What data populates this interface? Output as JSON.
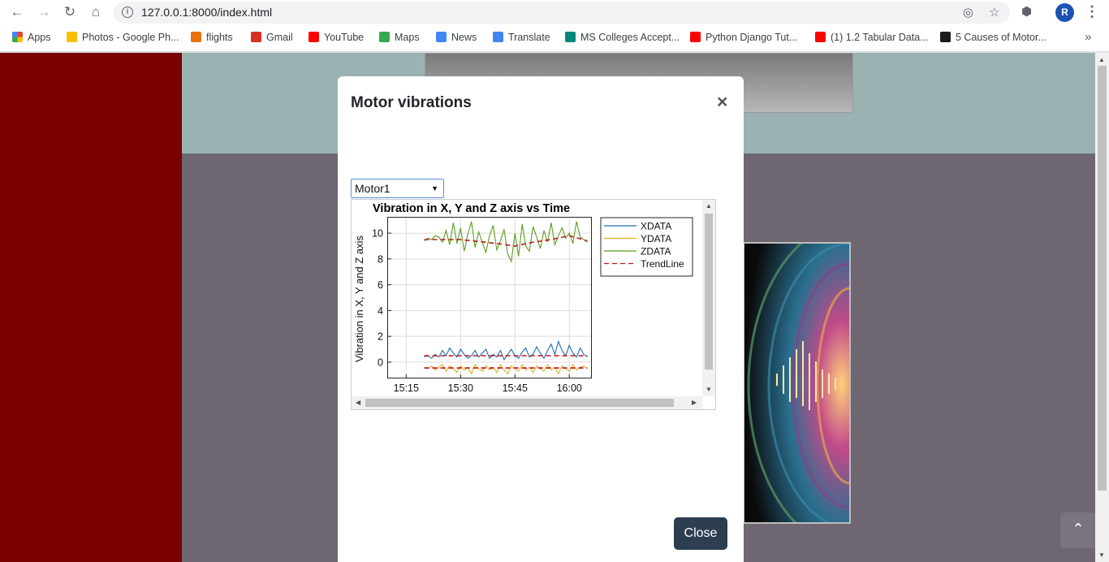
{
  "browser": {
    "url": "127.0.0.1:8000/index.html",
    "avatar_letter": "R"
  },
  "bookmarks": [
    {
      "label": "Apps",
      "color": "#ea4335"
    },
    {
      "label": "Photos - Google Ph...",
      "color": "#fbbc04"
    },
    {
      "label": "flights",
      "color": "#e8710a"
    },
    {
      "label": "Gmail",
      "color": "#d93025"
    },
    {
      "label": "YouTube",
      "color": "#ff0000"
    },
    {
      "label": "Maps",
      "color": "#34a853"
    },
    {
      "label": "News",
      "color": "#4285f4"
    },
    {
      "label": "Translate",
      "color": "#4285f4"
    },
    {
      "label": "MS Colleges Accept...",
      "color": "#00897b"
    },
    {
      "label": "Python Django Tut...",
      "color": "#ff0000"
    },
    {
      "label": "(1) 1.2 Tabular Data...",
      "color": "#ff0000"
    },
    {
      "label": "5 Causes of Motor...",
      "color": "#1a1a1a"
    }
  ],
  "modal": {
    "title": "Motor vibrations",
    "close_symbol": "×",
    "select_value": "Motor1",
    "close_button_label": "Close"
  },
  "chart_data": {
    "type": "line",
    "title": "Vibration in X, Y and Z axis vs Time",
    "xlabel": "",
    "ylabel": "Vibration in X, Y and Z axis",
    "x_ticks": [
      "15:15",
      "15:30",
      "15:45",
      "16:00"
    ],
    "y_ticks": [
      0,
      2,
      4,
      6,
      8,
      10
    ],
    "ylim": [
      -1.2,
      11.2
    ],
    "xlim_minutes": [
      10,
      66
    ],
    "grid": true,
    "legend_position": "top-right (outside plot)",
    "series": [
      {
        "name": "XDATA",
        "color": "#1f6fb4",
        "dash": false,
        "x": [
          20,
          21,
          22,
          23,
          24,
          25,
          26,
          27,
          28,
          29,
          30,
          31,
          32,
          33,
          34,
          35,
          36,
          37,
          38,
          39,
          40,
          41,
          42,
          43,
          44,
          45,
          46,
          47,
          48,
          49,
          50,
          51,
          52,
          53,
          54,
          55,
          56,
          57,
          58,
          59,
          60,
          61,
          62,
          63,
          64,
          65
        ],
        "y": [
          0.4,
          0.5,
          0.3,
          0.6,
          0.4,
          0.9,
          0.5,
          1.1,
          0.7,
          0.4,
          1.0,
          0.6,
          0.3,
          0.5,
          0.9,
          0.4,
          0.7,
          1.0,
          0.3,
          0.6,
          0.4,
          0.9,
          0.2,
          0.6,
          1.0,
          0.5,
          0.3,
          0.8,
          1.1,
          0.4,
          0.6,
          1.2,
          0.7,
          0.3,
          0.9,
          1.4,
          0.6,
          1.6,
          0.9,
          0.5,
          1.3,
          0.7,
          0.4,
          1.1,
          0.6,
          0.4
        ]
      },
      {
        "name": "YDATA",
        "color": "#e0b020",
        "dash": false,
        "x": [
          20,
          21,
          22,
          23,
          24,
          25,
          26,
          27,
          28,
          29,
          30,
          31,
          32,
          33,
          34,
          35,
          36,
          37,
          38,
          39,
          40,
          41,
          42,
          43,
          44,
          45,
          46,
          47,
          48,
          49,
          50,
          51,
          52,
          53,
          54,
          55,
          56,
          57,
          58,
          59,
          60,
          61,
          62,
          63,
          64,
          65
        ],
        "y": [
          -0.4,
          -0.5,
          -0.3,
          -0.6,
          -0.4,
          -0.2,
          -0.7,
          -0.3,
          -0.5,
          -0.8,
          -0.3,
          -0.6,
          -0.4,
          -0.9,
          -0.2,
          -0.5,
          -0.7,
          -0.3,
          -0.6,
          -0.4,
          -0.8,
          -0.2,
          -0.6,
          -0.9,
          -0.3,
          -0.5,
          -0.7,
          -0.2,
          -0.6,
          -0.4,
          -0.8,
          -0.3,
          -0.5,
          -0.7,
          -0.2,
          -0.6,
          -0.4,
          -0.9,
          -0.3,
          -0.5,
          -0.7,
          -0.2,
          -0.6,
          -0.4,
          -0.3,
          -0.5
        ]
      },
      {
        "name": "ZDATA",
        "color": "#5a9e1e",
        "dash": false,
        "x": [
          20,
          21,
          22,
          23,
          24,
          25,
          26,
          27,
          28,
          29,
          30,
          31,
          32,
          33,
          34,
          35,
          36,
          37,
          38,
          39,
          40,
          41,
          42,
          43,
          44,
          45,
          46,
          47,
          48,
          49,
          50,
          51,
          52,
          53,
          54,
          55,
          56,
          57,
          58,
          59,
          60,
          61,
          62,
          63,
          64,
          65
        ],
        "y": [
          9.4,
          9.6,
          9.5,
          9.8,
          9.7,
          9.3,
          10.2,
          9.1,
          10.8,
          9.2,
          10.4,
          8.6,
          9.9,
          10.9,
          8.9,
          10.1,
          9.3,
          8.5,
          9.8,
          10.6,
          8.7,
          9.4,
          10.3,
          8.4,
          7.8,
          10.0,
          8.2,
          10.7,
          9.0,
          8.6,
          10.5,
          9.7,
          8.8,
          10.2,
          9.3,
          10.8,
          9.1,
          9.8,
          10.4,
          9.6,
          10.0,
          9.2,
          10.9,
          9.7,
          9.5,
          9.3
        ]
      },
      {
        "name": "TrendLine",
        "color": "#c0151b",
        "dash": true,
        "x": [
          20,
          30,
          40,
          45,
          50,
          55,
          60,
          65
        ],
        "y": [
          9.5,
          9.5,
          9.2,
          9.0,
          9.3,
          9.5,
          9.8,
          9.4
        ]
      },
      {
        "name": "",
        "color": "#c0151b",
        "dash": true,
        "x": [
          20,
          65
        ],
        "y": [
          0.5,
          0.5
        ]
      },
      {
        "name": "",
        "color": "#c0151b",
        "dash": true,
        "x": [
          20,
          65
        ],
        "y": [
          -0.45,
          -0.45
        ]
      }
    ]
  }
}
